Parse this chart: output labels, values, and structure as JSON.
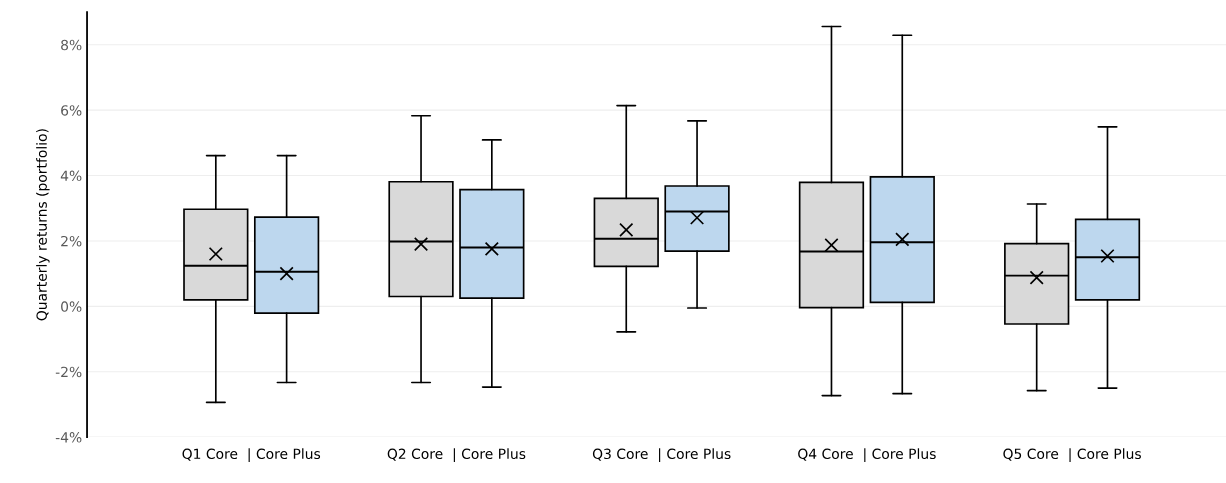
{
  "chart_data": {
    "type": "box",
    "ylabel": "Quarterly returns (portfolio)",
    "categories": [
      "Q1 Core  | Core Plus",
      "Q2 Core  | Core Plus",
      "Q3 Core  | Core Plus",
      "Q4 Core  | Core Plus",
      "Q5 Core  | Core Plus"
    ],
    "series": [
      {
        "color": "#d9d9d9",
        "boxes": [
          {
            "low": -2.94,
            "q1": 0.2,
            "median": 1.24,
            "q3": 2.97,
            "high": 4.61,
            "mean": 1.6
          },
          {
            "low": -2.33,
            "q1": 0.3,
            "median": 1.98,
            "q3": 3.81,
            "high": 5.83,
            "mean": 1.9
          },
          {
            "low": -0.78,
            "q1": 1.22,
            "median": 2.07,
            "q3": 3.3,
            "high": 6.14,
            "mean": 2.34
          },
          {
            "low": -2.73,
            "q1": -0.04,
            "median": 1.68,
            "q3": 3.79,
            "high": 8.56,
            "mean": 1.87
          },
          {
            "low": -2.58,
            "q1": -0.54,
            "median": 0.94,
            "q3": 1.92,
            "high": 3.13,
            "mean": 0.88
          }
        ]
      },
      {
        "color": "#bdd7ee",
        "boxes": [
          {
            "low": -2.33,
            "q1": -0.21,
            "median": 1.06,
            "q3": 2.73,
            "high": 4.61,
            "mean": 1.0
          },
          {
            "low": -2.47,
            "q1": 0.25,
            "median": 1.8,
            "q3": 3.57,
            "high": 5.09,
            "mean": 1.76
          },
          {
            "low": -0.05,
            "q1": 1.69,
            "median": 2.9,
            "q3": 3.68,
            "high": 5.67,
            "mean": 2.71
          },
          {
            "low": -2.67,
            "q1": 0.12,
            "median": 1.96,
            "q3": 3.96,
            "high": 8.29,
            "mean": 2.05
          },
          {
            "low": -2.5,
            "q1": 0.2,
            "median": 1.5,
            "q3": 2.66,
            "high": 5.49,
            "mean": 1.54
          }
        ]
      }
    ],
    "ylim": [
      -4,
      9
    ],
    "yticks": [
      {
        "value": -4,
        "label": "-4%"
      },
      {
        "value": -2,
        "label": "-2%"
      },
      {
        "value": 0,
        "label": "0%"
      },
      {
        "value": 2,
        "label": "2%"
      },
      {
        "value": 4,
        "label": "4%"
      },
      {
        "value": 6,
        "label": "6%"
      },
      {
        "value": 8,
        "label": "8%"
      }
    ],
    "grid": "y"
  }
}
